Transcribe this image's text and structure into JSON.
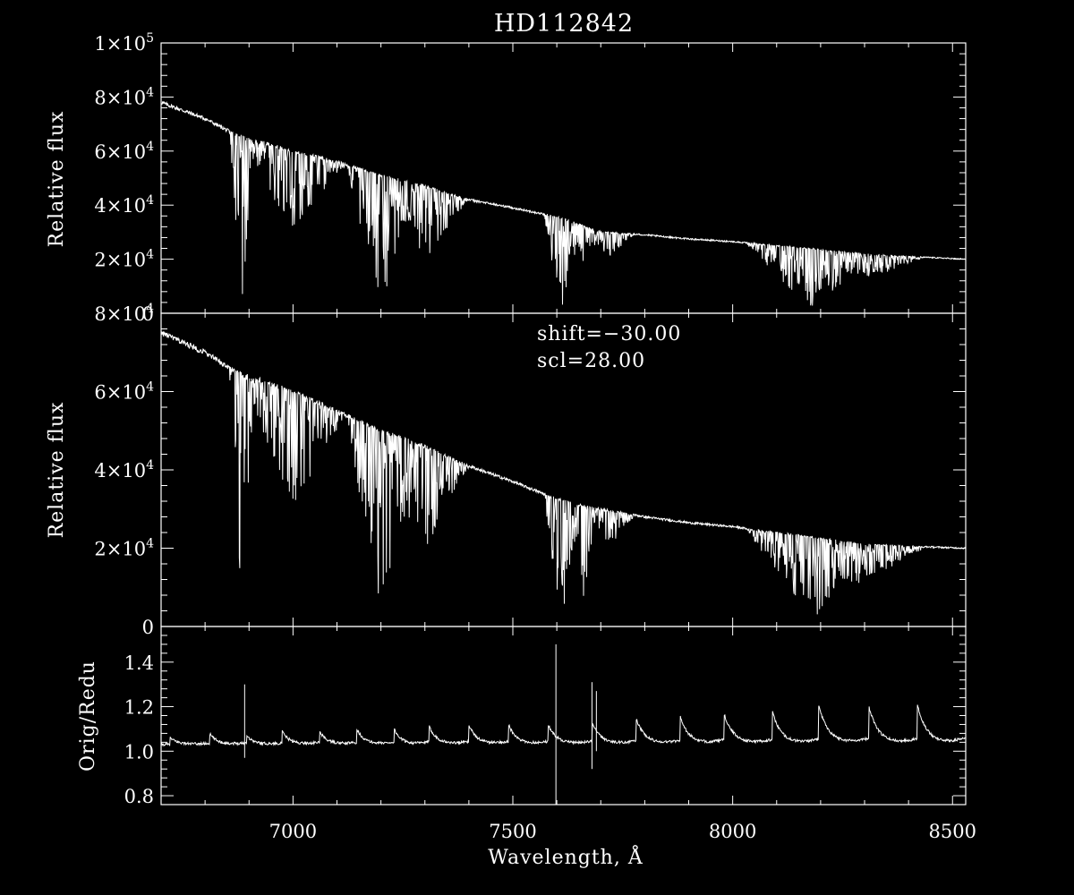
{
  "chart_data": [
    {
      "type": "line",
      "panel": "top",
      "title": "HD112842",
      "ylabel": "Relative flux",
      "xlim": [
        6700,
        8530
      ],
      "ylim": [
        0,
        100000
      ],
      "y_ticks": [
        {
          "value": 0,
          "label": "0"
        },
        {
          "value": 20000,
          "label": "2×10^4"
        },
        {
          "value": 40000,
          "label": "4×10^4"
        },
        {
          "value": 60000,
          "label": "6×10^4"
        },
        {
          "value": 80000,
          "label": "8×10^4"
        },
        {
          "value": 100000,
          "label": "1×10^5"
        }
      ],
      "continuum": [
        [
          6700,
          78000
        ],
        [
          6800,
          72000
        ],
        [
          6870,
          66000
        ],
        [
          7000,
          60000
        ],
        [
          7100,
          56000
        ],
        [
          7200,
          51000
        ],
        [
          7300,
          47000
        ],
        [
          7400,
          42000
        ],
        [
          7500,
          39000
        ],
        [
          7590,
          36000
        ],
        [
          7650,
          33000
        ],
        [
          7700,
          30000
        ],
        [
          7800,
          29000
        ],
        [
          7900,
          27500
        ],
        [
          8000,
          26500
        ],
        [
          8100,
          25000
        ],
        [
          8200,
          23500
        ],
        [
          8300,
          22000
        ],
        [
          8400,
          21000
        ],
        [
          8530,
          20000
        ]
      ],
      "absorption_bands": [
        {
          "center": 6885,
          "width": 30,
          "depth": 1.0
        },
        {
          "center": 7000,
          "width": 120,
          "depth": 0.5
        },
        {
          "center": 7200,
          "width": 80,
          "depth": 0.95
        },
        {
          "center": 7300,
          "width": 100,
          "depth": 0.6
        },
        {
          "center": 7610,
          "width": 40,
          "depth": 1.0
        },
        {
          "center": 7660,
          "width": 30,
          "depth": 0.85
        },
        {
          "center": 7720,
          "width": 60,
          "depth": 0.3
        },
        {
          "center": 8180,
          "width": 150,
          "depth": 0.95
        },
        {
          "center": 8320,
          "width": 120,
          "depth": 0.4
        }
      ],
      "grid": false
    },
    {
      "type": "line",
      "panel": "middle",
      "ylabel": "Relative flux",
      "xlim": [
        6700,
        8530
      ],
      "ylim": [
        0,
        80000
      ],
      "y_ticks": [
        {
          "value": 0,
          "label": "0"
        },
        {
          "value": 20000,
          "label": "2×10^4"
        },
        {
          "value": 40000,
          "label": "4×10^4"
        },
        {
          "value": 60000,
          "label": "6×10^4"
        },
        {
          "value": 80000,
          "label": "8×10^4"
        }
      ],
      "annotations": [
        "shift=−30.00",
        "scl=28.00"
      ],
      "continuum": [
        [
          6700,
          75000
        ],
        [
          6800,
          70000
        ],
        [
          6870,
          65000
        ],
        [
          7000,
          60000
        ],
        [
          7100,
          55000
        ],
        [
          7200,
          50000
        ],
        [
          7300,
          46000
        ],
        [
          7400,
          41000
        ],
        [
          7500,
          37000
        ],
        [
          7590,
          33000
        ],
        [
          7650,
          31000
        ],
        [
          7700,
          30000
        ],
        [
          7800,
          28000
        ],
        [
          7900,
          26500
        ],
        [
          8000,
          25500
        ],
        [
          8100,
          24000
        ],
        [
          8200,
          22500
        ],
        [
          8300,
          21000
        ],
        [
          8400,
          20500
        ],
        [
          8530,
          20000
        ]
      ],
      "absorption_bands": [
        {
          "center": 6885,
          "width": 30,
          "depth": 1.0
        },
        {
          "center": 7000,
          "width": 120,
          "depth": 0.5
        },
        {
          "center": 7200,
          "width": 80,
          "depth": 0.95
        },
        {
          "center": 7300,
          "width": 100,
          "depth": 0.6
        },
        {
          "center": 7610,
          "width": 40,
          "depth": 1.0
        },
        {
          "center": 7660,
          "width": 30,
          "depth": 0.85
        },
        {
          "center": 7720,
          "width": 60,
          "depth": 0.3
        },
        {
          "center": 8180,
          "width": 150,
          "depth": 0.95
        },
        {
          "center": 8320,
          "width": 120,
          "depth": 0.4
        }
      ],
      "grid": false
    },
    {
      "type": "line",
      "panel": "bottom",
      "xlabel": "Wavelength, Å",
      "ylabel": "Orig/Redu",
      "xlim": [
        6700,
        8530
      ],
      "ylim": [
        0.76,
        1.56
      ],
      "x_ticks": [
        {
          "value": 7000,
          "label": "7000"
        },
        {
          "value": 7500,
          "label": "7500"
        },
        {
          "value": 8000,
          "label": "8000"
        },
        {
          "value": 8500,
          "label": "8500"
        }
      ],
      "y_ticks": [
        {
          "value": 0.8,
          "label": "0.8"
        },
        {
          "value": 1.0,
          "label": "1.0"
        },
        {
          "value": 1.2,
          "label": "1.2"
        },
        {
          "value": 1.4,
          "label": "1.4"
        }
      ],
      "baseline": 1.03,
      "bumps": [
        {
          "x": 6720,
          "peak": 1.06
        },
        {
          "x": 6810,
          "peak": 1.08
        },
        {
          "x": 6895,
          "peak": 1.07
        },
        {
          "x": 6975,
          "peak": 1.09
        },
        {
          "x": 7060,
          "peak": 1.09
        },
        {
          "x": 7145,
          "peak": 1.1
        },
        {
          "x": 7230,
          "peak": 1.1
        },
        {
          "x": 7310,
          "peak": 1.11
        },
        {
          "x": 7400,
          "peak": 1.12
        },
        {
          "x": 7490,
          "peak": 1.12
        },
        {
          "x": 7580,
          "peak": 1.12
        },
        {
          "x": 7680,
          "peak": 1.13
        },
        {
          "x": 7780,
          "peak": 1.15
        },
        {
          "x": 7880,
          "peak": 1.16
        },
        {
          "x": 7980,
          "peak": 1.17
        },
        {
          "x": 8090,
          "peak": 1.18
        },
        {
          "x": 8195,
          "peak": 1.21
        },
        {
          "x": 8310,
          "peak": 1.2
        },
        {
          "x": 8420,
          "peak": 1.21
        }
      ],
      "spikes": [
        {
          "x": 6890,
          "low": 0.97,
          "high": 1.3
        },
        {
          "x": 7598,
          "low": 0.76,
          "high": 1.48
        },
        {
          "x": 7680,
          "low": 0.92,
          "high": 1.31
        },
        {
          "x": 7690,
          "low": 1.0,
          "high": 1.27
        }
      ],
      "grid": false
    }
  ]
}
